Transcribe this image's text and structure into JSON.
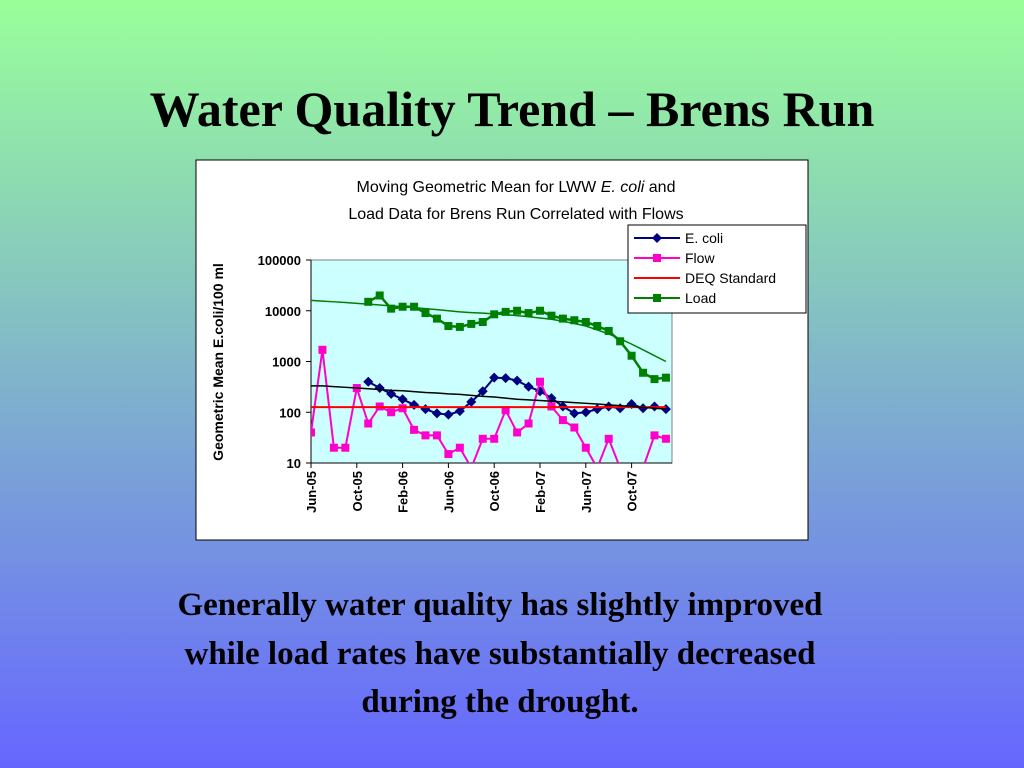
{
  "slide_title": "Water Quality Trend – Brens Run",
  "caption": [
    "Generally water quality has slightly improved",
    "while load rates have substantially decreased",
    "during the drought."
  ],
  "chart_data": {
    "type": "line",
    "title": {
      "before": "Moving Geometric Mean for LWW",
      "italic": "E. coli",
      "after": "and",
      "line2": "Load Data for Brens Run Correlated with Flows"
    },
    "ylabel": "Geometric Mean E.coli/100 ml",
    "log_y": true,
    "ylim": [
      10,
      100000
    ],
    "yticks": [
      10,
      100,
      1000,
      10000,
      100000
    ],
    "legend": "top-right",
    "categories": [
      "Jun-05",
      null,
      null,
      null,
      "Oct-05",
      null,
      null,
      null,
      "Feb-06",
      null,
      null,
      null,
      "Jun-06",
      null,
      null,
      null,
      "Oct-06",
      null,
      null,
      null,
      "Feb-07",
      null,
      null,
      null,
      "Jun-07",
      null,
      null,
      null,
      "Oct-07",
      null,
      null,
      null
    ],
    "series": [
      {
        "name": "E. coli",
        "color": "#000080",
        "marker": "diamond",
        "values": [
          null,
          null,
          null,
          null,
          null,
          400,
          300,
          230,
          180,
          140,
          115,
          95,
          90,
          105,
          160,
          260,
          480,
          470,
          420,
          320,
          260,
          190,
          130,
          95,
          100,
          115,
          130,
          120,
          145,
          120,
          130,
          115
        ]
      },
      {
        "name": "Flow",
        "color": "#ff00cc",
        "marker": "square",
        "values": [
          40,
          1700,
          20,
          20,
          300,
          60,
          130,
          100,
          120,
          45,
          35,
          35,
          15,
          20,
          8,
          30,
          30,
          110,
          40,
          60,
          400,
          130,
          70,
          50,
          20,
          8,
          30,
          8,
          8,
          8,
          35,
          30
        ]
      },
      {
        "name": "DEQ Standard",
        "color": "#ff0000",
        "marker": "none",
        "values": [
          126,
          126,
          126,
          126,
          126,
          126,
          126,
          126,
          126,
          126,
          126,
          126,
          126,
          126,
          126,
          126,
          126,
          126,
          126,
          126,
          126,
          126,
          126,
          126,
          126,
          126,
          126,
          126,
          126,
          126,
          126,
          126
        ]
      },
      {
        "name": "Load",
        "color": "#008000",
        "marker": "square",
        "values": [
          null,
          null,
          null,
          null,
          null,
          15000,
          20000,
          11000,
          12000,
          12000,
          9000,
          7000,
          5000,
          4800,
          5500,
          6000,
          8500,
          9500,
          10000,
          9000,
          10000,
          8000,
          7000,
          6500,
          6000,
          5000,
          4000,
          2500,
          1300,
          600,
          450,
          480
        ]
      },
      {
        "color": "#000000",
        "marker": "none",
        "values": [
          330,
          330,
          320,
          310,
          300,
          290,
          280,
          270,
          265,
          255,
          245,
          240,
          230,
          225,
          215,
          205,
          200,
          190,
          180,
          175,
          170,
          165,
          160,
          155,
          150,
          145,
          140,
          135,
          130,
          125,
          120,
          115
        ]
      },
      {
        "color": "#008000",
        "marker": "none",
        "values": [
          16000,
          15500,
          15000,
          14500,
          14000,
          13500,
          13000,
          12500,
          12000,
          11500,
          11000,
          10500,
          10000,
          9500,
          9200,
          9000,
          8700,
          8400,
          8000,
          7600,
          7200,
          6800,
          6200,
          5600,
          5000,
          4200,
          3500,
          2800,
          2200,
          1700,
          1300,
          1000
        ]
      }
    ]
  }
}
